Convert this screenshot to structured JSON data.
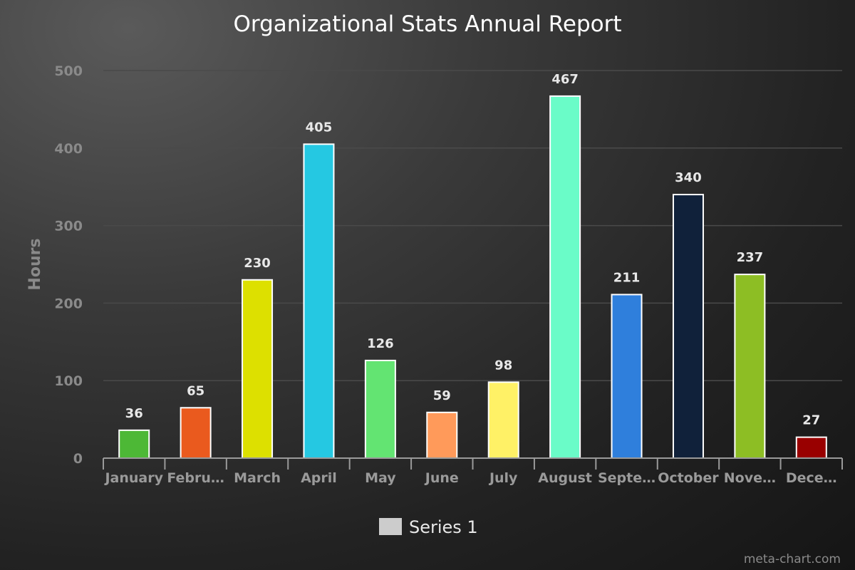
{
  "chart_data": {
    "type": "bar",
    "title": "Organizational Stats Annual Report",
    "xlabel": "",
    "ylabel": "Hours",
    "ylim": [
      0,
      500
    ],
    "yticks": [
      0,
      100,
      200,
      300,
      400,
      500
    ],
    "grid": true,
    "legend_position": "bottom",
    "categories": [
      "January",
      "Febru…",
      "March",
      "April",
      "May",
      "June",
      "July",
      "August",
      "Septe…",
      "October",
      "Nove…",
      "Dece…"
    ],
    "series": [
      {
        "name": "Series 1",
        "values": [
          36,
          65,
          230,
          405,
          126,
          59,
          98,
          467,
          211,
          340,
          237,
          27
        ]
      }
    ],
    "colors": [
      "#4db836",
      "#ea5a1e",
      "#dde000",
      "#25c8e2",
      "#63e472",
      "#ff9a5a",
      "#fff166",
      "#6afcc8",
      "#2f7fdc",
      "#10213a",
      "#8dbe24",
      "#990000"
    ],
    "legend_color": "#cccccc"
  },
  "credit": "meta-chart.com"
}
